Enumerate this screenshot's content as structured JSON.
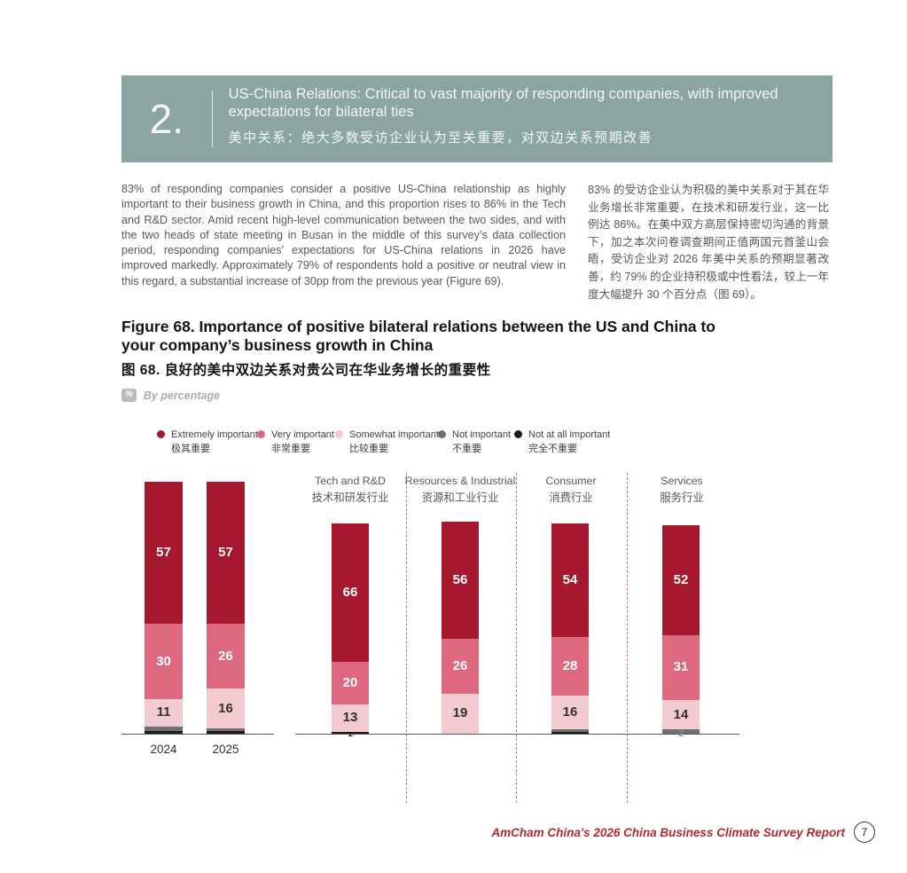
{
  "banner": {
    "number": "2.",
    "title_en": "US-China Relations: Critical to vast majority of responding companies, with improved expectations for bilateral ties",
    "title_zh": "美中关系：绝大多数受访企业认为至关重要，对双边关系预期改善"
  },
  "body": {
    "en": "83% of responding companies consider a positive US-China relationship as highly important to their business growth in China, and this proportion rises to 86% in the Tech and R&D sector. Amid recent high-level communication between the two sides, and with the two heads of state meeting in Busan in the middle of this survey’s data collection period, responding companies’ expectations for US-China relations in 2026 have improved markedly. Approximately 79% of respondents hold a positive or neutral view in this regard, a substantial increase of 30pp from the previous year (Figure 69).",
    "zh": "83% 的受访企业认为积极的美中关系对于其在华业务增长非常重要，在技术和研发行业，这一比例达 86%。在美中双方高层保持密切沟通的背景下，加之本次问卷调查期间正值两国元首釜山会晤，受访企业对 2026 年美中关系的预期显著改善，约 79% 的企业持积极或中性看法，较上一年度大幅提升 30 个百分点（图 69）。"
  },
  "figure": {
    "title_en": "Figure 68. Importance of positive bilateral relations between the US and China to your company’s business growth in China",
    "title_zh": "图 68. 良好的美中双边关系对贵公司在华业务增长的重要性",
    "unit_badge": "%",
    "unit_label": "By percentage"
  },
  "footer": {
    "text": "AmCham China's 2026 China Business Climate Survey Report",
    "page_number": "7"
  },
  "colors": {
    "banner_bg": "#8BA5A3",
    "footer_red": "#B2292E",
    "separator_red": "#D4677A",
    "axis": "#58595B"
  },
  "chart_data": {
    "type": "bar",
    "variant": "stacked",
    "unit": "percent",
    "legend_position": "top",
    "series_labels": [
      {
        "en": "Extremely important",
        "zh": "极其重要",
        "color": "#A5182E"
      },
      {
        "en": "Very important",
        "zh": "非常重要",
        "color": "#DE6880"
      },
      {
        "en": "Somewhat important",
        "zh": "比较重要",
        "color": "#F4CAD1"
      },
      {
        "en": "Not important",
        "zh": "不重要",
        "color": "#6E6F71"
      },
      {
        "en": "Not at all important",
        "zh": "完全不重要",
        "color": "#1A1A1A"
      }
    ],
    "groups": [
      {
        "label_en": "",
        "label_zh": "",
        "bars": [
          {
            "x": "2024",
            "values": [
              57,
              30,
              11,
              2,
              1
            ]
          },
          {
            "x": "2025",
            "values": [
              57,
              26,
              16,
              1,
              1
            ]
          }
        ]
      },
      {
        "label_en": "Tech and R&D",
        "label_zh": "技术和研发行业",
        "bars": [
          {
            "x": "",
            "values": [
              66,
              20,
              13,
              0,
              1
            ]
          }
        ]
      },
      {
        "label_en": "Resources & Industrial",
        "label_zh": "资源和工业行业",
        "bars": [
          {
            "x": "",
            "values": [
              56,
              26,
              19,
              0,
              0
            ]
          }
        ]
      },
      {
        "label_en": "Consumer",
        "label_zh": "消费行业",
        "bars": [
          {
            "x": "",
            "values": [
              54,
              28,
              16,
              1,
              1
            ]
          }
        ]
      },
      {
        "label_en": "Services",
        "label_zh": "服务行业",
        "bars": [
          {
            "x": "",
            "values": [
              52,
              31,
              14,
              2,
              0
            ]
          }
        ]
      }
    ]
  }
}
